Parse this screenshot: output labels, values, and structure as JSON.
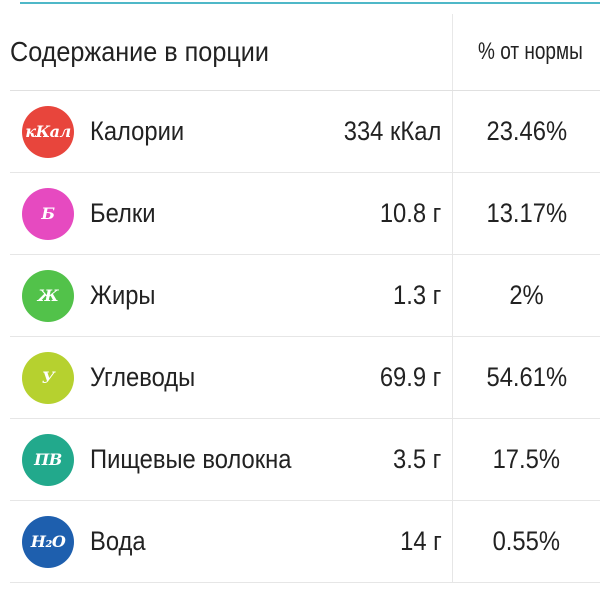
{
  "header": {
    "portion_label": "Содержание в порции",
    "norm_label": "% от нормы"
  },
  "rows": [
    {
      "badge": "кКал",
      "badge_color": "#e8453c",
      "name": "Калории",
      "amount": "334 кКал",
      "pct": "23.46%"
    },
    {
      "badge": "Б",
      "badge_color": "#e64ac0",
      "name": "Белки",
      "amount": "10.8 г",
      "pct": "13.17%"
    },
    {
      "badge": "Ж",
      "badge_color": "#52c24a",
      "name": "Жиры",
      "amount": "1.3 г",
      "pct": "2%"
    },
    {
      "badge": "У",
      "badge_color": "#b6d12f",
      "name": "Углеводы",
      "amount": "69.9 г",
      "pct": "54.61%"
    },
    {
      "badge": "ПВ",
      "badge_color": "#22a98c",
      "name": "Пищевые волокна",
      "amount": "3.5 г",
      "pct": "17.5%"
    },
    {
      "badge": "H₂O",
      "badge_color": "#1e5fae",
      "name": "Вода",
      "amount": "14 г",
      "pct": "0.55%"
    }
  ]
}
